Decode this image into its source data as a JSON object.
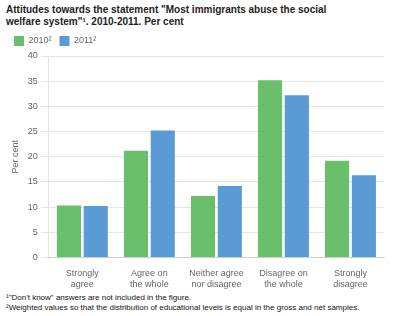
{
  "chart_data": {
    "type": "bar",
    "title": "Attitudes towards the statement \"Most immigrants abuse the social\nwelfare system\"¹. 2010-2011. Per cent",
    "ylabel": "Per cent",
    "categories": [
      "Strongly\nagree",
      "Agree on\nthe whole",
      "Neither agree\nnor disagree",
      "Disagree on\nthe whole",
      "Strongly\ndisagree"
    ],
    "series": [
      {
        "name": "2010²",
        "color": "#6abf6a",
        "values": [
          10.3,
          21.2,
          12.2,
          35.2,
          19.2
        ]
      },
      {
        "name": "2011²",
        "color": "#5b9bd5",
        "values": [
          10.2,
          25.2,
          14.2,
          32.2,
          16.3
        ]
      }
    ],
    "ylim": [
      0,
      40
    ],
    "yticks": [
      0,
      5,
      10,
      15,
      20,
      25,
      30,
      35,
      40
    ],
    "grid": true,
    "legend": "upper left",
    "footnotes": [
      "¹\"Don't know\" answers are not included in the figure.",
      "²Weighted values so that the distribution of educational levels is equal in the gross and net samples."
    ]
  }
}
